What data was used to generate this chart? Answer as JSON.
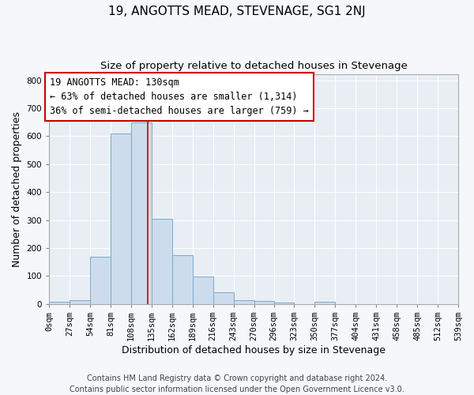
{
  "title": "19, ANGOTTS MEAD, STEVENAGE, SG1 2NJ",
  "subtitle": "Size of property relative to detached houses in Stevenage",
  "xlabel": "Distribution of detached houses by size in Stevenage",
  "ylabel": "Number of detached properties",
  "bin_edges": [
    0,
    27,
    54,
    81,
    108,
    135,
    162,
    189,
    216,
    243,
    270,
    296,
    323,
    350,
    377,
    404,
    431,
    458,
    485,
    512,
    539
  ],
  "bar_heights": [
    8,
    13,
    170,
    610,
    650,
    305,
    175,
    98,
    42,
    15,
    10,
    5,
    0,
    7,
    0,
    0,
    0,
    0,
    0,
    0
  ],
  "bar_facecolor": "#cddcec",
  "bar_edgecolor": "#7aaaca",
  "vline_x": 130,
  "vline_color": "#cc0000",
  "annotation_text": "19 ANGOTTS MEAD: 130sqm\n← 63% of detached houses are smaller (1,314)\n36% of semi-detached houses are larger (759) →",
  "annotation_box_edgecolor": "#cc0000",
  "annotation_box_facecolor": "#ffffff",
  "ylim": [
    0,
    820
  ],
  "yticks": [
    0,
    100,
    200,
    300,
    400,
    500,
    600,
    700,
    800
  ],
  "tick_labels": [
    "0sqm",
    "27sqm",
    "54sqm",
    "81sqm",
    "108sqm",
    "135sqm",
    "162sqm",
    "189sqm",
    "216sqm",
    "243sqm",
    "270sqm",
    "296sqm",
    "323sqm",
    "350sqm",
    "377sqm",
    "404sqm",
    "431sqm",
    "458sqm",
    "485sqm",
    "512sqm",
    "539sqm"
  ],
  "footer_text": "Contains HM Land Registry data © Crown copyright and database right 2024.\nContains public sector information licensed under the Open Government Licence v3.0.",
  "plot_bg_color": "#e8eef4",
  "fig_bg_color": "#f5f7fa",
  "grid_color": "#ffffff",
  "title_fontsize": 11,
  "subtitle_fontsize": 9.5,
  "label_fontsize": 9,
  "tick_fontsize": 7.5,
  "footer_fontsize": 7,
  "ann_fontsize": 8.5
}
